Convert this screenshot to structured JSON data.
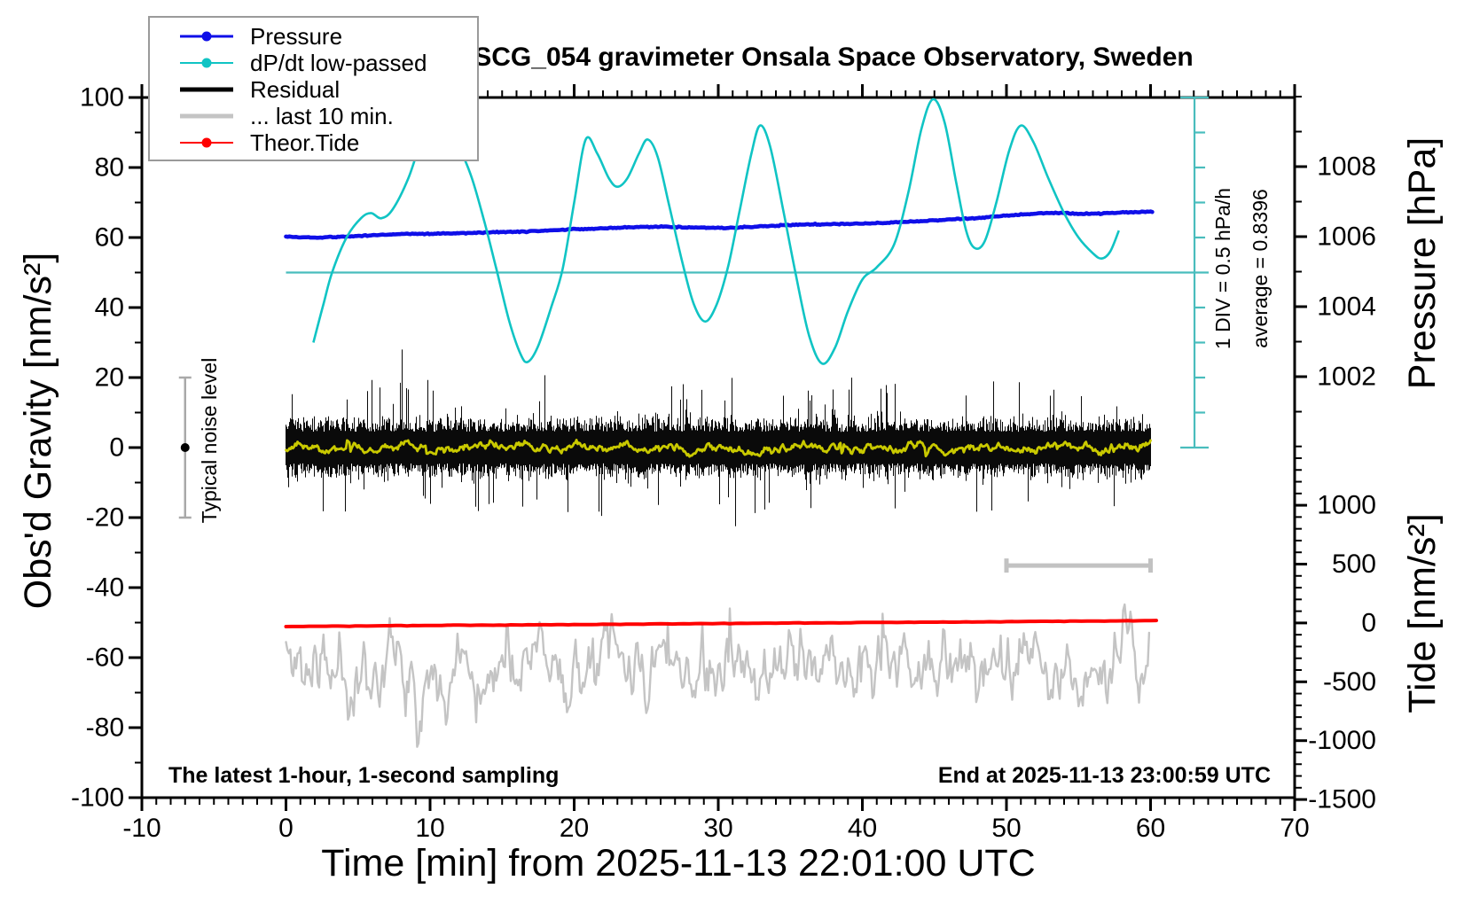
{
  "title": "SCG_054 gravimeter Onsala Space Observatory, Sweden",
  "annotations": {
    "sampling_note": "The latest 1-hour, 1-second sampling",
    "end_note": "End at 2025-11-13 23:00:59 UTC",
    "div_note": "1 DIV = 0.5 hPa/h",
    "average_note": "average = 0.8396",
    "noise_note": "Typical noise level"
  },
  "legend": {
    "items": [
      {
        "label": "Pressure",
        "color": "#0f0fe8",
        "line_width": 3,
        "dot": true
      },
      {
        "label": "dP/dt low-passed",
        "color": "#10c4c4",
        "line_width": 2,
        "dot": true
      },
      {
        "label": "Residual",
        "color": "#000000",
        "line_width": 5,
        "dot": false
      },
      {
        "label": "... last 10 min.",
        "color": "#c4c4c4",
        "line_width": 5,
        "dot": false
      },
      {
        "label": "Theor.Tide",
        "color": "#ff0000",
        "line_width": 2,
        "dot": true
      }
    ]
  },
  "chart_data": {
    "type": "line",
    "title": "SCG_054 gravimeter Onsala Space Observatory, Sweden",
    "x_axis": {
      "label": "Time [min] from 2025-11-13 22:01:00 UTC",
      "min": -10,
      "max": 70,
      "minor_step": 1,
      "major_ticks": [
        -10,
        0,
        10,
        20,
        30,
        40,
        50,
        60,
        70
      ]
    },
    "y_left": {
      "label": "Obs'd Gravity [nm/s²]",
      "min": -100,
      "max": 100,
      "minor_step": 10,
      "major_ticks": [
        -100,
        -80,
        -60,
        -40,
        -20,
        0,
        20,
        40,
        60,
        80,
        100
      ]
    },
    "y_right_pressure": {
      "label": "Pressure [hPa]",
      "min": 1001,
      "max": 1010,
      "minor_step": 1,
      "major_ticks": [
        1008,
        1006,
        1004,
        1002
      ],
      "to_gravity": {
        "ref": 1006,
        "ref_g": 60.25,
        "g_per_unit": 10
      }
    },
    "y_right_tide": {
      "label": "Tide [nm/s²]",
      "min": -1500,
      "max": 1500,
      "minor_step": 100,
      "major_ticks": [
        1000,
        500,
        0,
        -500,
        -1000,
        -1500
      ],
      "to_gravity": {
        "ref": 0,
        "ref_g": -50.1,
        "g_per_unit": 0.03362
      }
    },
    "series": [
      {
        "name": "... last 10 min.",
        "kind": "noise_line",
        "color": "#c4c4c4",
        "width": 2.4,
        "t_start": 0,
        "t_end": 60,
        "mean_g": -62.5,
        "clamp_g": [
          -85.5,
          -39.5
        ],
        "step_min": 0.1,
        "pull": 0.72,
        "sigma": 8,
        "spike_p": 0.05,
        "spike_amp": 28,
        "seed": 11
      },
      {
        "name": "Theor.Tide",
        "kind": "value_line",
        "axis": "tide",
        "color": "#ff0000",
        "width": 4,
        "jitter": 2.0,
        "points": [
          [
            0,
            -30
          ],
          [
            60.4,
            20
          ]
        ]
      },
      {
        "name": "Residual",
        "kind": "noise_band",
        "color": "#0a0a0a",
        "width": 1,
        "t_start": 0,
        "t_end": 60,
        "center_g": 0,
        "core": 4.5,
        "core_var": 4.5,
        "spike_p": 0.05,
        "spike_amp": 13,
        "big_p": 0.006,
        "big_amp": 8,
        "max_g": 28.5,
        "seed": 7
      },
      {
        "name": "Smoothed residual",
        "kind": "noise_line",
        "color": "#c9c900",
        "width": 2.8,
        "t_start": 0,
        "t_end": 60,
        "mean_g": 0,
        "clamp_g": [
          -4.5,
          4.5
        ],
        "step_min": 0.08,
        "pull": 0.8,
        "sigma": 1.0,
        "spike_p": 0.02,
        "spike_amp": 5,
        "seed": 23
      },
      {
        "name": "Pressure",
        "kind": "value_line",
        "axis": "pressure",
        "color": "#0f0fe8",
        "width": 4.6,
        "jitter": 0.16,
        "points": [
          [
            0,
            1006.0
          ],
          [
            2,
            1005.97
          ],
          [
            4,
            1006.0
          ],
          [
            6,
            1006.04
          ],
          [
            8,
            1006.08
          ],
          [
            10,
            1006.08
          ],
          [
            12,
            1006.1
          ],
          [
            14,
            1006.12
          ],
          [
            16,
            1006.14
          ],
          [
            18,
            1006.17
          ],
          [
            20,
            1006.21
          ],
          [
            22,
            1006.24
          ],
          [
            24,
            1006.27
          ],
          [
            26,
            1006.29
          ],
          [
            28,
            1006.26
          ],
          [
            30,
            1006.25
          ],
          [
            32,
            1006.27
          ],
          [
            34,
            1006.32
          ],
          [
            36,
            1006.35
          ],
          [
            38,
            1006.36
          ],
          [
            40,
            1006.37
          ],
          [
            42,
            1006.4
          ],
          [
            44,
            1006.44
          ],
          [
            46,
            1006.49
          ],
          [
            48,
            1006.53
          ],
          [
            50,
            1006.6
          ],
          [
            52,
            1006.66
          ],
          [
            53.5,
            1006.68
          ],
          [
            55,
            1006.65
          ],
          [
            56.5,
            1006.66
          ],
          [
            58,
            1006.69
          ],
          [
            60.2,
            1006.72
          ]
        ]
      },
      {
        "name": "dP/dt low-passed",
        "kind": "smooth_line",
        "color": "#10c4c4",
        "width": 2.6,
        "points_gravity": [
          [
            1.9,
            30
          ],
          [
            2.6,
            41
          ],
          [
            3.2,
            50
          ],
          [
            4.2,
            60
          ],
          [
            5.2,
            65.5
          ],
          [
            5.9,
            67
          ],
          [
            6.6,
            65.5
          ],
          [
            7.4,
            68
          ],
          [
            8.5,
            77
          ],
          [
            9.4,
            88
          ],
          [
            10.2,
            96
          ],
          [
            11.1,
            93
          ],
          [
            12.0,
            86
          ],
          [
            12.9,
            77
          ],
          [
            13.8,
            64
          ],
          [
            14.6,
            51
          ],
          [
            15.5,
            36
          ],
          [
            16.3,
            26.5
          ],
          [
            16.8,
            24.5
          ],
          [
            17.5,
            29
          ],
          [
            18.4,
            40
          ],
          [
            19.2,
            51
          ],
          [
            20.0,
            70
          ],
          [
            20.8,
            88
          ],
          [
            21.6,
            84
          ],
          [
            22.4,
            77
          ],
          [
            23.0,
            74.5
          ],
          [
            23.7,
            77
          ],
          [
            24.5,
            84
          ],
          [
            25.1,
            88
          ],
          [
            25.8,
            83
          ],
          [
            26.6,
            69
          ],
          [
            27.5,
            53
          ],
          [
            28.3,
            41
          ],
          [
            29.1,
            36
          ],
          [
            29.9,
            41
          ],
          [
            30.7,
            52
          ],
          [
            31.5,
            68
          ],
          [
            32.3,
            84
          ],
          [
            32.9,
            92
          ],
          [
            33.6,
            86
          ],
          [
            34.5,
            68
          ],
          [
            35.4,
            49
          ],
          [
            36.3,
            32
          ],
          [
            37.2,
            24
          ],
          [
            38.1,
            28.5
          ],
          [
            39.0,
            39
          ],
          [
            40.0,
            48
          ],
          [
            41.0,
            51.5
          ],
          [
            42.2,
            58
          ],
          [
            43.2,
            73
          ],
          [
            44.1,
            91
          ],
          [
            44.9,
            99.5
          ],
          [
            45.7,
            93
          ],
          [
            46.5,
            76
          ],
          [
            47.2,
            62
          ],
          [
            47.8,
            57
          ],
          [
            48.5,
            59
          ],
          [
            49.3,
            70
          ],
          [
            50.2,
            85
          ],
          [
            51.0,
            92
          ],
          [
            51.9,
            87
          ],
          [
            52.9,
            77
          ],
          [
            54.0,
            67
          ],
          [
            55.0,
            60
          ],
          [
            56.0,
            55.5
          ],
          [
            56.6,
            54
          ],
          [
            57.2,
            56
          ],
          [
            57.8,
            62
          ]
        ]
      }
    ],
    "markers": {
      "dpdt_average_line": {
        "g": 50,
        "t_start": 0,
        "color": "#49bdbd",
        "width": 2.2
      },
      "dpdt_ruler": {
        "t": 63.05,
        "g_min": 0,
        "g_max": 100,
        "tick_step_g": 10,
        "color": "#49bdbd",
        "width": 2.2
      },
      "noise_marker": {
        "t": -7,
        "g_center": 0,
        "g_half": 20,
        "color": "#a9a9a9",
        "dot_color": "#000000"
      },
      "ten_min_bar": {
        "t_start": 50,
        "t_end": 60,
        "g": -33.7,
        "color": "#c2c2c2",
        "width": 5
      }
    },
    "frame_color": "#000000",
    "background": "#ffffff"
  }
}
